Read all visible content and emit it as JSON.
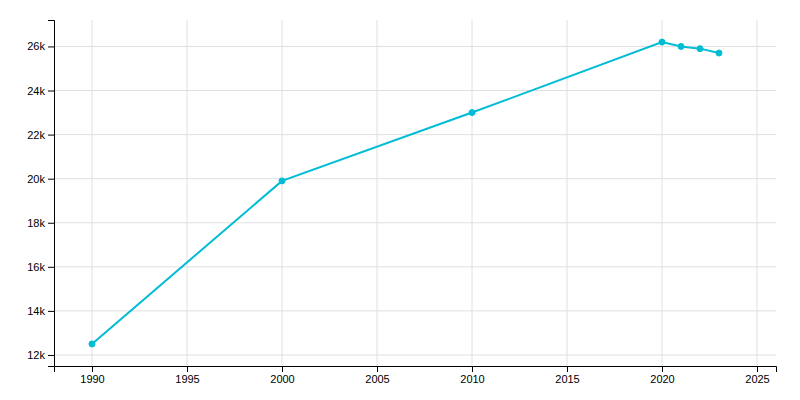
{
  "chart_data": {
    "type": "line",
    "x": [
      1990,
      2000,
      2010,
      2020,
      2021,
      2022,
      2023
    ],
    "values": [
      12500,
      19900,
      23000,
      26200,
      26000,
      25900,
      25700
    ],
    "color": "#00BCD4",
    "marker": "circle",
    "xlim": [
      1988,
      2026
    ],
    "xticks": [
      1990,
      1995,
      2000,
      2005,
      2010,
      2015,
      2020,
      2025
    ],
    "ylim": [
      11500,
      27200
    ],
    "yticks": [
      {
        "value": 12000,
        "label": "12k"
      },
      {
        "value": 14000,
        "label": "14k"
      },
      {
        "value": 16000,
        "label": "16k"
      },
      {
        "value": 18000,
        "label": "18k"
      },
      {
        "value": 20000,
        "label": "20k"
      },
      {
        "value": 22000,
        "label": "22k"
      },
      {
        "value": 24000,
        "label": "24k"
      },
      {
        "value": 26000,
        "label": "26k"
      }
    ],
    "grid": true
  }
}
